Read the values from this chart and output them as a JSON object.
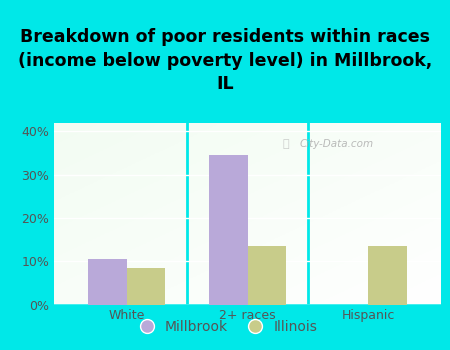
{
  "title": "Breakdown of poor residents within races\n(income below poverty level) in Millbrook,\nIL",
  "categories": [
    "White",
    "2+ races",
    "Hispanic"
  ],
  "millbrook_values": [
    10.5,
    34.5,
    0.0
  ],
  "illinois_values": [
    8.5,
    13.5,
    13.5
  ],
  "millbrook_color": "#b9a9d9",
  "illinois_color": "#c8cc8a",
  "background_color": "#00e8e8",
  "ylim": [
    0,
    42
  ],
  "yticks": [
    0,
    10,
    20,
    30,
    40
  ],
  "ytick_labels": [
    "0%",
    "10%",
    "20%",
    "30%",
    "40%"
  ],
  "bar_width": 0.32,
  "legend_labels": [
    "Millbrook",
    "Illinois"
  ],
  "title_fontsize": 12.5,
  "tick_fontsize": 9,
  "legend_fontsize": 10,
  "tick_color": "#555555",
  "watermark_text": "City-Data.com",
  "watermark_color": "#aaaaaa"
}
